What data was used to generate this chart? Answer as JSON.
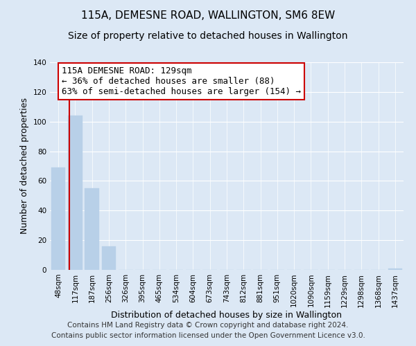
{
  "title": "115A, DEMESNE ROAD, WALLINGTON, SM6 8EW",
  "subtitle": "Size of property relative to detached houses in Wallington",
  "xlabel": "Distribution of detached houses by size in Wallington",
  "ylabel": "Number of detached properties",
  "bar_labels": [
    "48sqm",
    "117sqm",
    "187sqm",
    "256sqm",
    "326sqm",
    "395sqm",
    "465sqm",
    "534sqm",
    "604sqm",
    "673sqm",
    "743sqm",
    "812sqm",
    "881sqm",
    "951sqm",
    "1020sqm",
    "1090sqm",
    "1159sqm",
    "1229sqm",
    "1298sqm",
    "1368sqm",
    "1437sqm"
  ],
  "bar_values": [
    69,
    104,
    55,
    16,
    0,
    0,
    0,
    0,
    0,
    0,
    0,
    0,
    0,
    0,
    0,
    0,
    0,
    0,
    0,
    0,
    1
  ],
  "bar_color": "#b8d0e8",
  "bar_edge_color": "#b8d0e8",
  "vline_color": "#cc0000",
  "vline_x_index": 1,
  "annotation_text": "115A DEMESNE ROAD: 129sqm\n← 36% of detached houses are smaller (88)\n63% of semi-detached houses are larger (154) →",
  "annotation_box_facecolor": "white",
  "annotation_box_edgecolor": "#cc0000",
  "ylim": [
    0,
    140
  ],
  "yticks": [
    0,
    20,
    40,
    60,
    80,
    100,
    120,
    140
  ],
  "background_color": "#dce8f5",
  "plot_bg_color": "#dce8f5",
  "grid_color": "white",
  "footer_line1": "Contains HM Land Registry data © Crown copyright and database right 2024.",
  "footer_line2": "Contains public sector information licensed under the Open Government Licence v3.0.",
  "title_fontsize": 11,
  "subtitle_fontsize": 10,
  "xlabel_fontsize": 9,
  "ylabel_fontsize": 9,
  "tick_fontsize": 7.5,
  "annotation_fontsize": 9,
  "footer_fontsize": 7.5
}
